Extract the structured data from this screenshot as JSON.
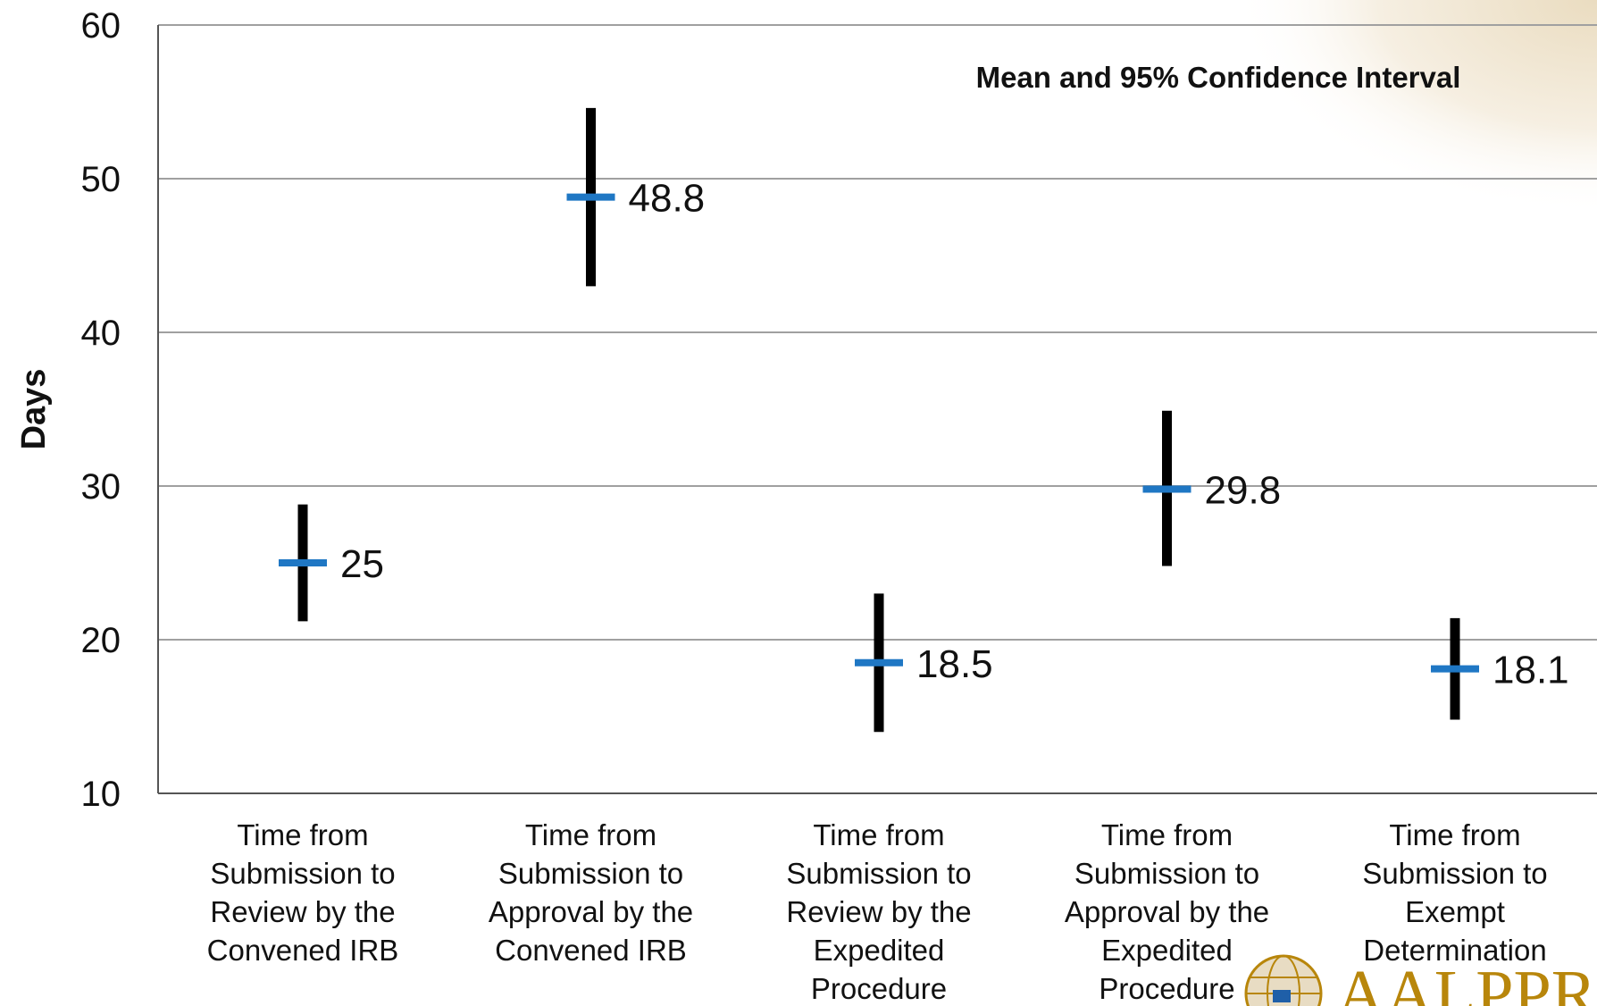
{
  "chart_data": {
    "type": "scatter",
    "title": "",
    "annotation": "Mean and 95% Confidence Interval",
    "xlabel": "",
    "ylabel": "Days",
    "ylim": [
      10,
      60
    ],
    "yticks": [
      10,
      20,
      30,
      40,
      50,
      60
    ],
    "grid": true,
    "categories": [
      [
        "Time from",
        "Submission to",
        "Review by the",
        "Convened IRB"
      ],
      [
        "Time from",
        "Submission to",
        "Approval by the",
        "Convened IRB"
      ],
      [
        "Time from",
        "Submission to",
        "Review by the",
        "Expedited",
        "Procedure"
      ],
      [
        "Time from",
        "Submission to",
        "Approval by the",
        "Expedited",
        "Procedure"
      ],
      [
        "Time from",
        "Submission to",
        "Exempt",
        "Determination"
      ]
    ],
    "series": [
      {
        "mean": [
          25,
          48.8,
          18.5,
          29.8,
          18.1
        ],
        "mean_labels": [
          "25",
          "48.8",
          "18.5",
          "29.8",
          "18.1"
        ],
        "ci_low": [
          21.2,
          43.0,
          14.0,
          24.8,
          14.8
        ],
        "ci_high": [
          28.8,
          54.6,
          23.0,
          34.9,
          21.4
        ]
      }
    ],
    "colors": {
      "mean": "#1f77c4",
      "ci": "#000000",
      "grid": "#a0a0a0"
    }
  },
  "logo": {
    "text": "AALPPR",
    "icon": "globe-logo-icon"
  }
}
